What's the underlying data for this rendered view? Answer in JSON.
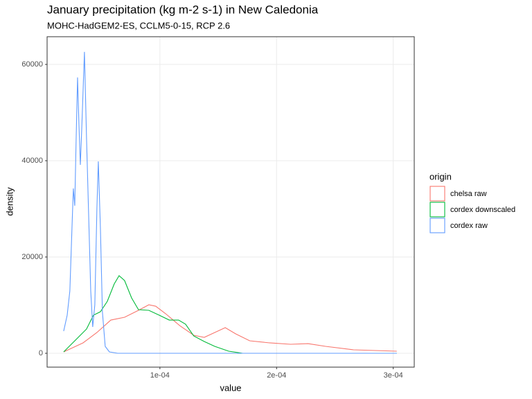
{
  "chart_data": {
    "type": "line",
    "title": "January precipitation (kg m-2 s-1) in New Caledonia",
    "subtitle": "MOHC-HadGEM2-ES, CCLM5-0-15, RCP 2.6",
    "x_label": "value",
    "y_label": "density",
    "legend_title": "origin",
    "xlim": [
      3.3e-06,
      0.000318
    ],
    "ylim": [
      -2878,
      65755
    ],
    "xticks": [
      {
        "value": 0.0001,
        "label": "1e-04"
      },
      {
        "value": 0.0002,
        "label": "2e-04"
      },
      {
        "value": 0.0003,
        "label": "3e-04"
      }
    ],
    "yticks": [
      0,
      20000,
      40000,
      60000
    ],
    "grid": true,
    "legend_position": "right",
    "series": [
      {
        "name": "chelsa raw",
        "color": "#F8766D",
        "x": [
          1.75e-05,
          3.41e-05,
          4.6e-05,
          5.79e-05,
          6.97e-05,
          8.16e-05,
          9.05e-05,
          9.64e-05,
          0.000105,
          0.000117,
          0.000129,
          0.000138,
          0.000147,
          0.000156,
          0.000165,
          0.000177,
          0.000194,
          0.000212,
          0.000227,
          0.000242,
          0.000266,
          0.000303
        ],
        "values": [
          290,
          2160,
          4320,
          6900,
          7480,
          8920,
          10070,
          9780,
          8200,
          5750,
          3740,
          3310,
          4320,
          5320,
          4030,
          2590,
          2160,
          1870,
          2010,
          1440,
          720,
          430
        ]
      },
      {
        "name": "cordex downscaled",
        "color": "#00BA38",
        "x": [
          1.75e-05,
          2.82e-05,
          3.71e-05,
          4.3e-05,
          4.9e-05,
          5.49e-05,
          6.08e-05,
          6.5e-05,
          6.97e-05,
          7.57e-05,
          8.16e-05,
          9.05e-05,
          9.94e-05,
          0.000108,
          0.000116,
          0.000122,
          0.000129,
          0.000138,
          0.000147,
          0.000159,
          0.000171,
          0.000303
        ],
        "values": [
          290,
          2880,
          5040,
          7910,
          8630,
          10790,
          14390,
          16120,
          15110,
          11510,
          9060,
          8920,
          7910,
          6900,
          6900,
          6040,
          3600,
          2450,
          1440,
          430,
          0,
          0
        ]
      },
      {
        "name": "cordex raw",
        "color": "#619CFF",
        "x": [
          1.75e-05,
          2.05e-05,
          2.28e-05,
          2.46e-05,
          2.58e-05,
          2.7e-05,
          2.82e-05,
          2.94e-05,
          3.06e-05,
          3.18e-05,
          3.29e-05,
          3.53e-05,
          3.71e-05,
          3.89e-05,
          4.07e-05,
          4.24e-05,
          4.42e-05,
          4.6e-05,
          4.72e-05,
          4.9e-05,
          5.07e-05,
          5.31e-05,
          5.67e-05,
          6.38e-05,
          0.000303
        ],
        "values": [
          4600,
          7900,
          12950,
          25900,
          34240,
          30650,
          44600,
          57300,
          47500,
          39140,
          46000,
          62600,
          44600,
          28800,
          12950,
          5470,
          10070,
          30200,
          39860,
          25900,
          8630,
          1440,
          290,
          0,
          0
        ]
      }
    ]
  }
}
